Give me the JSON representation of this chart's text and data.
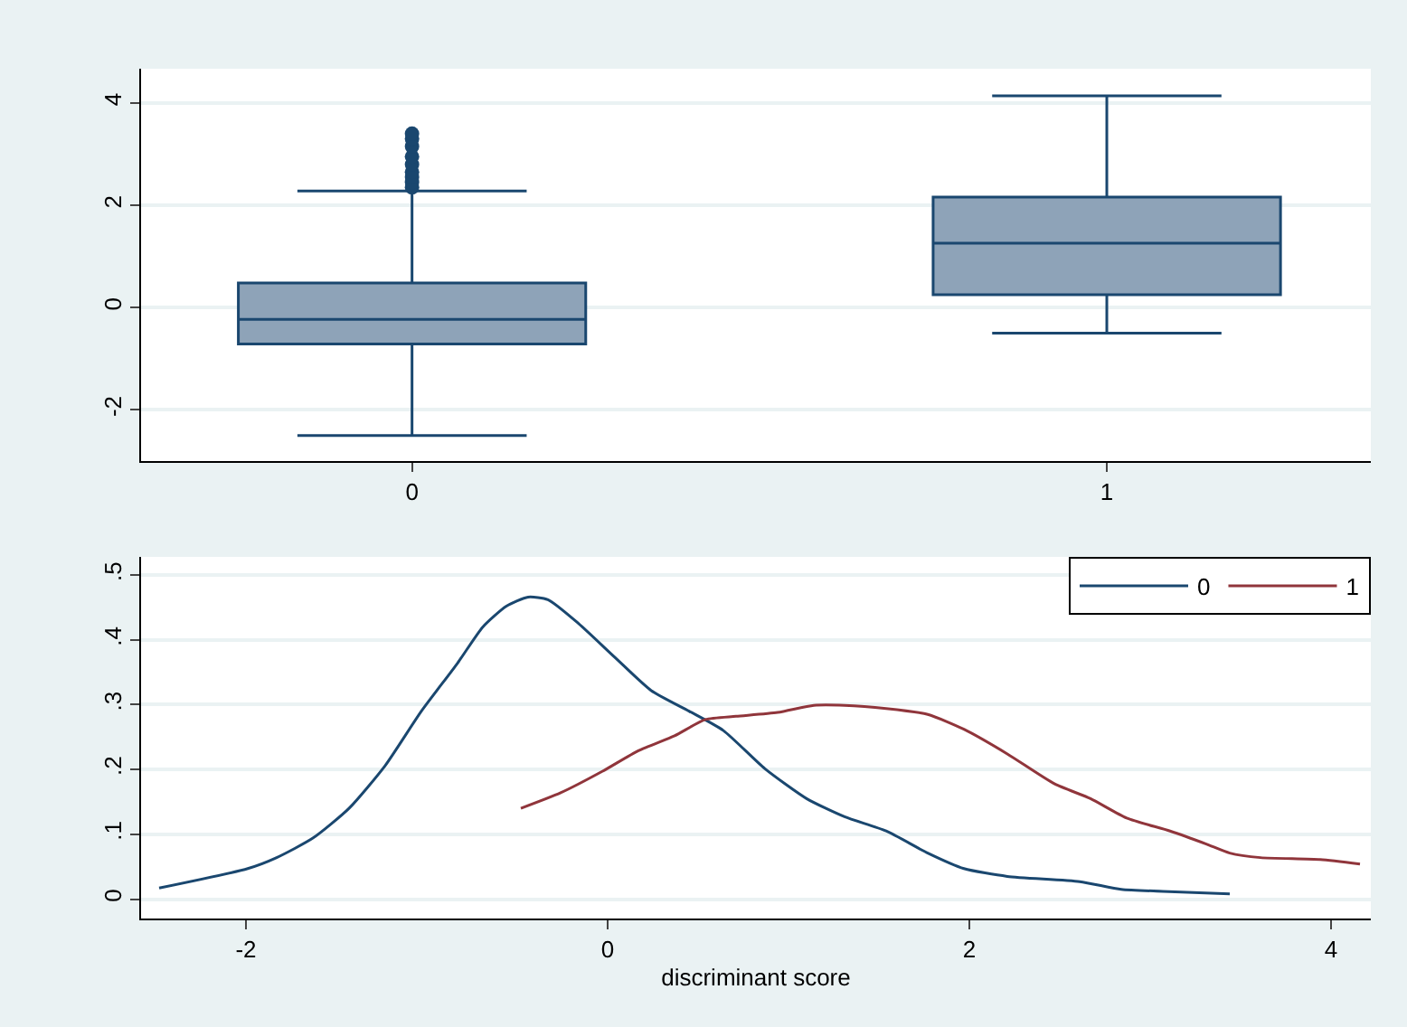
{
  "chart_data": [
    {
      "type": "box",
      "categories": [
        "0",
        "1"
      ],
      "color": "#8ea3b8",
      "boxes": [
        {
          "low": -2.5,
          "q1": -0.71,
          "median": -0.23,
          "q3": 0.48,
          "high": 2.28,
          "outliers": [
            2.35,
            2.45,
            2.55,
            2.65,
            2.8,
            2.95,
            3.15,
            3.3,
            3.4
          ]
        },
        {
          "low": -0.5,
          "q1": 0.25,
          "median": 1.26,
          "q3": 2.16,
          "high": 4.14
        }
      ],
      "ylim": [
        -3.0,
        4.67
      ],
      "yticks": [
        -2,
        0,
        2,
        4
      ],
      "grid": "y",
      "legend": false
    },
    {
      "type": "line",
      "xlabel": "discriminant score",
      "xlim": [
        -2.58,
        4.22
      ],
      "xticks": [
        -2,
        0,
        2,
        4
      ],
      "ylim": [
        -0.03,
        0.528
      ],
      "yticks": [
        {
          "value": 0,
          "label": "0"
        },
        {
          "value": 0.1,
          "label": ".1"
        },
        {
          "value": 0.2,
          "label": ".2"
        },
        {
          "value": 0.3,
          "label": ".3"
        },
        {
          "value": 0.4,
          "label": ".4"
        },
        {
          "value": 0.5,
          "label": ".5"
        }
      ],
      "grid": "y",
      "legend": "top right",
      "line_style": "solid",
      "marker": "none",
      "series": [
        {
          "name": "0",
          "color": "#1a476f",
          "x": [
            -2.48,
            -1.99,
            -1.83,
            -1.63,
            -1.43,
            -1.23,
            -1.03,
            -0.83,
            -0.69,
            -0.56,
            -0.44,
            -0.33,
            -0.16,
            0.04,
            0.24,
            0.45,
            0.64,
            0.87,
            1.1,
            1.31,
            1.54,
            1.77,
            1.97,
            2.21,
            2.61,
            2.84,
            3.07,
            3.44
          ],
          "values": [
            0.017,
            0.047,
            0.064,
            0.094,
            0.14,
            0.206,
            0.29,
            0.364,
            0.42,
            0.452,
            0.466,
            0.462,
            0.425,
            0.373,
            0.322,
            0.29,
            0.26,
            0.201,
            0.155,
            0.127,
            0.105,
            0.071,
            0.047,
            0.035,
            0.027,
            0.015,
            0.012,
            0.008
          ]
        },
        {
          "name": "1",
          "color": "#90353b",
          "x": [
            -0.48,
            -0.26,
            -0.03,
            0.17,
            0.37,
            0.54,
            0.71,
            0.94,
            1.14,
            1.31,
            1.54,
            1.77,
            1.97,
            2.21,
            2.47,
            2.67,
            2.87,
            3.11,
            3.31,
            3.44,
            3.61,
            3.94,
            4.16
          ],
          "values": [
            0.14,
            0.164,
            0.197,
            0.229,
            0.252,
            0.277,
            0.282,
            0.288,
            0.299,
            0.299,
            0.294,
            0.285,
            0.262,
            0.224,
            0.178,
            0.155,
            0.125,
            0.105,
            0.085,
            0.071,
            0.064,
            0.061,
            0.054
          ]
        }
      ]
    }
  ]
}
